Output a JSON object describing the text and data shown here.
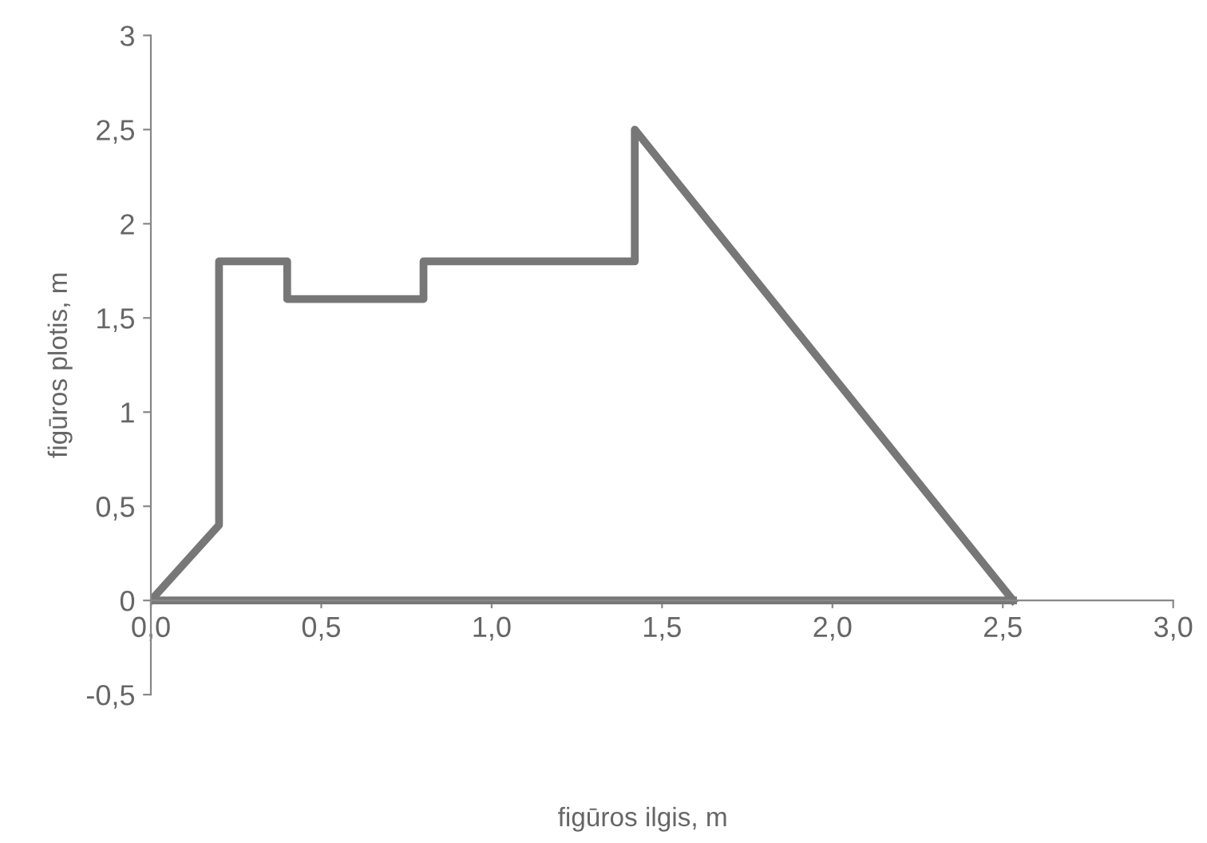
{
  "chart_data": {
    "type": "line",
    "xlabel": "figūros ilgis, m",
    "ylabel": "figūros plotis, m",
    "x": [
      0,
      0.2,
      0.2,
      0.4,
      0.4,
      0.8,
      0.8,
      1.42,
      1.42,
      2.53
    ],
    "series": [
      {
        "color": "#777777",
        "values": [
          0,
          0.4,
          1.8,
          1.8,
          1.6,
          1.6,
          1.8,
          1.8,
          2.5,
          0
        ]
      },
      {
        "color": "#777777",
        "x": [
          0,
          2.53
        ],
        "values": [
          0,
          0
        ]
      }
    ],
    "xlim": [
      0,
      3
    ],
    "xticks": [
      {
        "value": 0,
        "label": "0,0"
      },
      {
        "value": 0.5,
        "label": "0,5"
      },
      {
        "value": 1,
        "label": "1,0"
      },
      {
        "value": 1.5,
        "label": "1,5"
      },
      {
        "value": 2,
        "label": "2,0"
      },
      {
        "value": 2.5,
        "label": "2,5"
      },
      {
        "value": 3,
        "label": "3,0"
      }
    ],
    "ylim": [
      -0.5,
      3
    ],
    "yticks": [
      {
        "value": -0.5,
        "label": "-0,5"
      },
      0,
      {
        "value": 0.5,
        "label": "0,5"
      },
      1,
      {
        "value": 1.5,
        "label": "1,5"
      },
      2,
      {
        "value": 2.5,
        "label": "2,5"
      },
      3
    ],
    "grid": false,
    "legend": false,
    "marker": "none",
    "line_style": "solid"
  }
}
